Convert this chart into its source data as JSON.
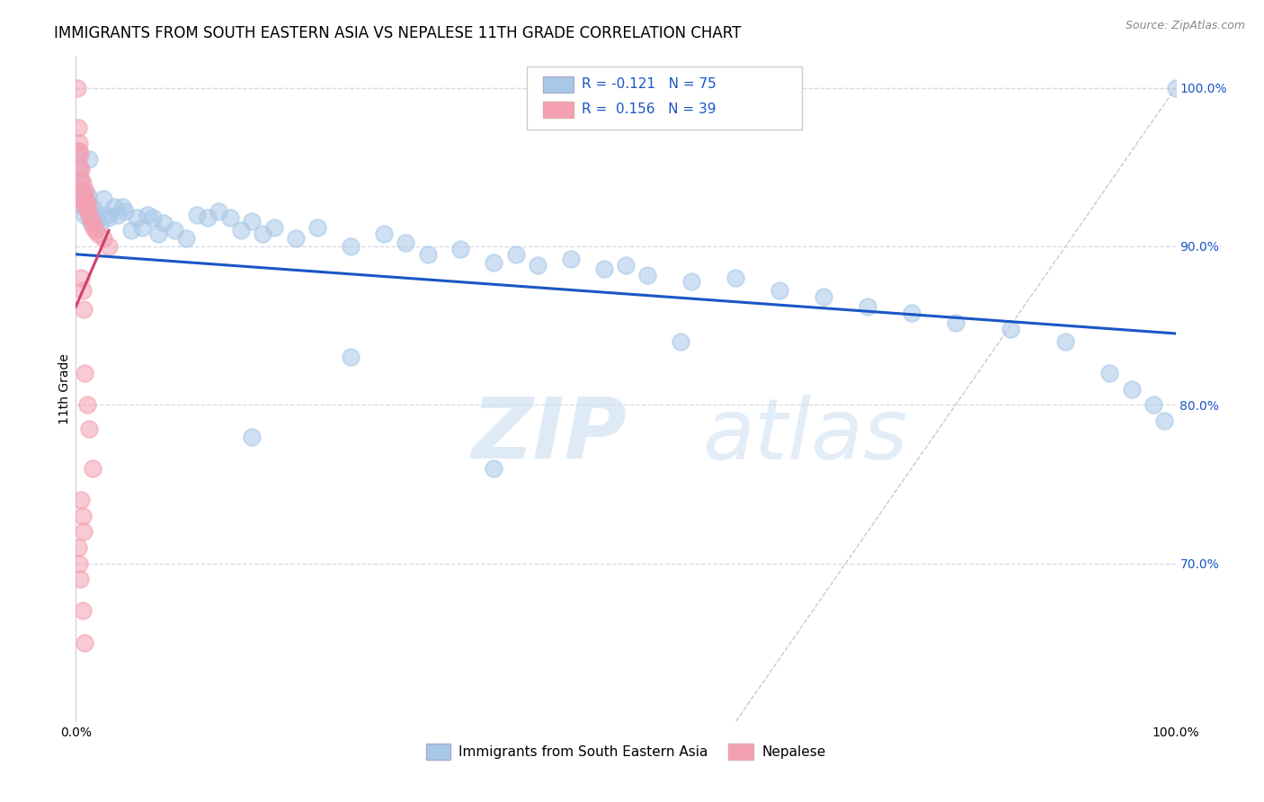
{
  "title": "IMMIGRANTS FROM SOUTH EASTERN ASIA VS NEPALESE 11TH GRADE CORRELATION CHART",
  "source": "Source: ZipAtlas.com",
  "ylabel": "11th Grade",
  "right_ytick_vals": [
    1.0,
    0.9,
    0.8,
    0.7
  ],
  "legend_blue_label": "Immigrants from South Eastern Asia",
  "legend_pink_label": "Nepalese",
  "blue_color": "#a8c8e8",
  "pink_color": "#f4a0b0",
  "blue_line_color": "#1a56c4",
  "pink_line_color": "#d04070",
  "diag_color": "#e0c0c0",
  "blue_scatter_x": [
    0.002,
    0.003,
    0.004,
    0.005,
    0.006,
    0.007,
    0.008,
    0.009,
    0.01,
    0.011,
    0.012,
    0.013,
    0.014,
    0.015,
    0.016,
    0.017,
    0.018,
    0.02,
    0.022,
    0.025,
    0.028,
    0.03,
    0.035,
    0.038,
    0.042,
    0.045,
    0.05,
    0.055,
    0.06,
    0.065,
    0.07,
    0.075,
    0.08,
    0.09,
    0.1,
    0.11,
    0.12,
    0.13,
    0.14,
    0.15,
    0.16,
    0.17,
    0.18,
    0.2,
    0.22,
    0.25,
    0.28,
    0.3,
    0.32,
    0.35,
    0.38,
    0.4,
    0.42,
    0.45,
    0.48,
    0.5,
    0.52,
    0.56,
    0.6,
    0.64,
    0.68,
    0.72,
    0.76,
    0.8,
    0.85,
    0.9,
    0.94,
    0.96,
    0.98,
    0.99,
    0.25,
    0.16,
    0.38,
    0.55,
    1.0
  ],
  "blue_scatter_y": [
    0.96,
    0.95,
    0.94,
    0.93,
    0.935,
    0.925,
    0.92,
    0.93,
    0.928,
    0.932,
    0.955,
    0.92,
    0.915,
    0.925,
    0.92,
    0.918,
    0.915,
    0.92,
    0.915,
    0.93,
    0.92,
    0.918,
    0.925,
    0.92,
    0.925,
    0.922,
    0.91,
    0.918,
    0.912,
    0.92,
    0.918,
    0.908,
    0.915,
    0.91,
    0.905,
    0.92,
    0.918,
    0.922,
    0.918,
    0.91,
    0.916,
    0.908,
    0.912,
    0.905,
    0.912,
    0.9,
    0.908,
    0.902,
    0.895,
    0.898,
    0.89,
    0.895,
    0.888,
    0.892,
    0.886,
    0.888,
    0.882,
    0.878,
    0.88,
    0.872,
    0.868,
    0.862,
    0.858,
    0.852,
    0.848,
    0.84,
    0.82,
    0.81,
    0.8,
    0.79,
    0.83,
    0.78,
    0.76,
    0.84,
    1.0
  ],
  "pink_scatter_x": [
    0.001,
    0.002,
    0.003,
    0.003,
    0.004,
    0.004,
    0.005,
    0.005,
    0.006,
    0.006,
    0.007,
    0.007,
    0.008,
    0.009,
    0.01,
    0.011,
    0.012,
    0.013,
    0.015,
    0.016,
    0.018,
    0.02,
    0.025,
    0.03,
    0.005,
    0.006,
    0.007,
    0.008,
    0.01,
    0.012,
    0.015,
    0.005,
    0.006,
    0.007,
    0.002,
    0.003,
    0.004,
    0.006,
    0.008
  ],
  "pink_scatter_y": [
    1.0,
    0.975,
    0.965,
    0.96,
    0.958,
    0.95,
    0.948,
    0.942,
    0.94,
    0.935,
    0.93,
    0.928,
    0.925,
    0.935,
    0.928,
    0.925,
    0.92,
    0.918,
    0.915,
    0.912,
    0.91,
    0.908,
    0.905,
    0.9,
    0.88,
    0.872,
    0.86,
    0.82,
    0.8,
    0.785,
    0.76,
    0.74,
    0.73,
    0.72,
    0.71,
    0.7,
    0.69,
    0.67,
    0.65
  ],
  "blue_trend_x": [
    0.0,
    1.0
  ],
  "blue_trend_y": [
    0.895,
    0.845
  ],
  "pink_trend_x": [
    0.0,
    0.03
  ],
  "pink_trend_y": [
    0.862,
    0.91
  ],
  "xlim": [
    0.0,
    1.0
  ],
  "ylim": [
    0.6,
    1.02
  ],
  "title_fontsize": 12,
  "axis_label_fontsize": 10,
  "tick_fontsize": 10,
  "background_color": "#ffffff",
  "grid_color": "#d8d8e8"
}
